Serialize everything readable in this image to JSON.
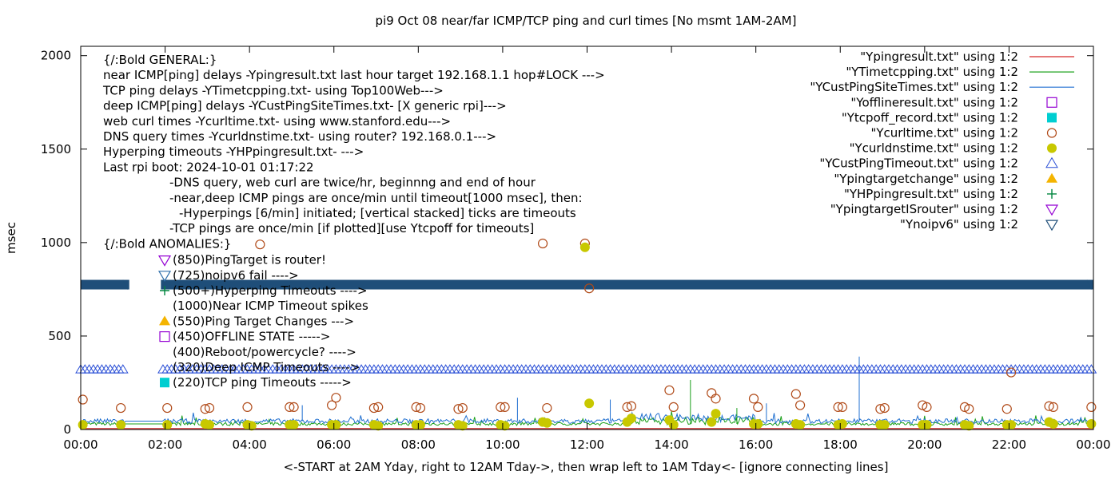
{
  "chart_data": {
    "type": "scatter",
    "title": "pi9 Oct 08  near/far ICMP/TCP ping and curl times [No msmt 1AM-2AM]",
    "xlabel": "<-START at 2AM Yday, right to 12AM Tday->, then wrap left to 1AM Tday<- [ignore connecting lines]",
    "ylabel": "msec",
    "xlim": [
      0,
      24
    ],
    "ylim": [
      0,
      2050
    ],
    "grid": false,
    "legend_position": "top-right",
    "x_ticks": [
      {
        "v": 0,
        "label": "00:00"
      },
      {
        "v": 2,
        "label": "02:00"
      },
      {
        "v": 4,
        "label": "04:00"
      },
      {
        "v": 6,
        "label": "06:00"
      },
      {
        "v": 8,
        "label": "08:00"
      },
      {
        "v": 10,
        "label": "10:00"
      },
      {
        "v": 12,
        "label": "12:00"
      },
      {
        "v": 14,
        "label": "14:00"
      },
      {
        "v": 16,
        "label": "16:00"
      },
      {
        "v": 18,
        "label": "18:00"
      },
      {
        "v": 20,
        "label": "20:00"
      },
      {
        "v": 22,
        "label": "22:00"
      },
      {
        "v": 24,
        "label": "00:00"
      }
    ],
    "y_ticks": [
      {
        "v": 0,
        "label": "0"
      },
      {
        "v": 500,
        "label": "500"
      },
      {
        "v": 1000,
        "label": "1000"
      },
      {
        "v": 1500,
        "label": "1500"
      },
      {
        "v": 2000,
        "label": "2000"
      }
    ],
    "annotations": [
      "{/:Bold GENERAL:}",
      "near ICMP[ping] delays -Ypingresult.txt last hour target 192.168.1.1 hop#LOCK --->",
      "TCP ping delays -YTimetcpping.txt- using Top100Web--->",
      "deep ICMP[ping] delays -YCustPingSiteTimes.txt- [X generic rpi]--->",
      "web curl times -Ycurltime.txt- using www.stanford.edu--->",
      "DNS query times -Ycurldnstime.txt- using router? 192.168.0.1--->",
      "Hyperping timeouts -YHPpingresult.txt- --->",
      "Last rpi boot: 2024-10-01 01:17:22"
    ],
    "notes": [
      "-DNS query, web curl are twice/hr, beginnng and end of hour",
      "-near,deep ICMP pings are once/min until timeout[1000 msec], then:",
      "-Hyperpings [6/min] initiated; [vertical stacked] ticks are timeouts",
      "-TCP pings are once/min [if plotted][use Ytcpoff for timeouts]"
    ],
    "anomalies_title": "{/:Bold ANOMALIES:}",
    "anomalies": [
      {
        "text": "(850)PingTarget is router!",
        "marker": "tri-down-open",
        "color": "#9400d3"
      },
      {
        "text": "(725)noipv6 fail   ---->",
        "marker": "tri-down-open",
        "color": "#2e6eaa"
      },
      {
        "text": "(500+)Hyperping Timeouts ---->",
        "marker": "plus",
        "color": "#00853f"
      },
      {
        "text": "(1000)Near ICMP Timeout spikes",
        "marker": "none",
        "color": "#000000"
      },
      {
        "text": "(550)Ping Target Changes --->",
        "marker": "tri-up-filled",
        "color": "#f4b400"
      },
      {
        "text": "(450)OFFLINE STATE ----->",
        "marker": "square-open",
        "color": "#9400d3"
      },
      {
        "text": "(400)Reboot/powercycle? ---->",
        "marker": "none",
        "color": "#000000"
      },
      {
        "text": "(320)Deep ICMP Timeouts ---->",
        "marker": "none",
        "color": "#000000"
      },
      {
        "text": "(220)TCP ping Timeouts ----->",
        "marker": "square-filled",
        "color": "#00ced1"
      }
    ],
    "series": [
      {
        "name": "\"Ypingresult.txt\" using 1:2",
        "kind": "line",
        "color": "#d62728",
        "y_const": 5
      },
      {
        "name": "\"YTimetcpping.txt\" using 1:2",
        "kind": "line",
        "color": "#1aa01a",
        "base": 30,
        "x_start": 0,
        "x_end": 24
      },
      {
        "name": "\"YCustPingSiteTimes.txt\" using 1:2",
        "kind": "line",
        "color": "#1f6fd0",
        "base": 45,
        "x_start": 0,
        "x_end": 24
      },
      {
        "name": "\"Yofflineresult.txt\" using 1:2",
        "kind": "square-open",
        "color": "#9400d3",
        "points": []
      },
      {
        "name": "\"Ytcpoff_record.txt\" using 1:2",
        "kind": "square-filled",
        "color": "#00ced1",
        "points": []
      },
      {
        "name": "\"Ycurltime.txt\" using 1:2",
        "kind": "circle-open",
        "color": "#b04a18",
        "points": [
          [
            0.05,
            160
          ],
          [
            0.95,
            115
          ],
          [
            2.05,
            115
          ],
          [
            2.95,
            110
          ],
          [
            3.05,
            115
          ],
          [
            3.95,
            120
          ],
          [
            4.25,
            990
          ],
          [
            4.95,
            120
          ],
          [
            5.05,
            120
          ],
          [
            5.95,
            130
          ],
          [
            6.05,
            170
          ],
          [
            6.95,
            115
          ],
          [
            7.05,
            120
          ],
          [
            7.95,
            120
          ],
          [
            8.05,
            115
          ],
          [
            8.95,
            110
          ],
          [
            9.05,
            115
          ],
          [
            9.95,
            120
          ],
          [
            10.05,
            120
          ],
          [
            10.95,
            995
          ],
          [
            11.05,
            115
          ],
          [
            11.95,
            995
          ],
          [
            12.05,
            755
          ],
          [
            12.95,
            120
          ],
          [
            13.05,
            125
          ],
          [
            13.95,
            210
          ],
          [
            14.05,
            120
          ],
          [
            14.95,
            195
          ],
          [
            15.05,
            165
          ],
          [
            15.95,
            165
          ],
          [
            16.05,
            120
          ],
          [
            16.95,
            190
          ],
          [
            17.05,
            130
          ],
          [
            17.95,
            120
          ],
          [
            18.05,
            120
          ],
          [
            18.95,
            110
          ],
          [
            19.05,
            115
          ],
          [
            19.95,
            130
          ],
          [
            20.05,
            120
          ],
          [
            20.95,
            120
          ],
          [
            21.05,
            110
          ],
          [
            21.95,
            110
          ],
          [
            22.05,
            305
          ],
          [
            22.95,
            125
          ],
          [
            23.05,
            120
          ],
          [
            23.95,
            120
          ]
        ]
      },
      {
        "name": "\"Ycurldnstime.txt\" using 1:2",
        "kind": "circle-filled",
        "color": "#c8c800",
        "points": [
          [
            0.05,
            25
          ],
          [
            0.95,
            25
          ],
          [
            2.05,
            25
          ],
          [
            2.95,
            30
          ],
          [
            3.05,
            25
          ],
          [
            3.95,
            25
          ],
          [
            4.05,
            20
          ],
          [
            4.95,
            25
          ],
          [
            5.05,
            25
          ],
          [
            5.95,
            25
          ],
          [
            6.05,
            25
          ],
          [
            6.95,
            25
          ],
          [
            7.05,
            20
          ],
          [
            7.95,
            25
          ],
          [
            8.05,
            25
          ],
          [
            8.95,
            25
          ],
          [
            9.05,
            20
          ],
          [
            9.95,
            25
          ],
          [
            10.05,
            20
          ],
          [
            10.95,
            40
          ],
          [
            11.05,
            35
          ],
          [
            11.95,
            975
          ],
          [
            12.05,
            140
          ],
          [
            12.95,
            40
          ],
          [
            13.05,
            60
          ],
          [
            13.95,
            50
          ],
          [
            14.05,
            25
          ],
          [
            14.95,
            40
          ],
          [
            15.05,
            85
          ],
          [
            15.95,
            30
          ],
          [
            16.05,
            30
          ],
          [
            16.95,
            30
          ],
          [
            17.05,
            25
          ],
          [
            17.95,
            25
          ],
          [
            18.05,
            30
          ],
          [
            18.95,
            25
          ],
          [
            19.05,
            25
          ],
          [
            19.95,
            25
          ],
          [
            20.05,
            25
          ],
          [
            20.95,
            25
          ],
          [
            21.05,
            20
          ],
          [
            21.95,
            25
          ],
          [
            22.05,
            25
          ],
          [
            22.95,
            40
          ],
          [
            23.05,
            30
          ],
          [
            23.95,
            30
          ]
        ]
      },
      {
        "name": "\"YCustPingTimeout.txt\" using 1:2",
        "kind": "tri-up-open-band",
        "color": "#2a4fd6",
        "y": 320,
        "segments": [
          [
            0.0,
            1.05
          ],
          [
            1.95,
            24.0
          ]
        ]
      },
      {
        "name": "\"Ypingtargetchange\" using 1:2",
        "kind": "tri-up-filled",
        "color": "#f4b400",
        "points": []
      },
      {
        "name": "\"YHPpingresult.txt\" using 1:2",
        "kind": "plus",
        "color": "#00853f",
        "points": []
      },
      {
        "name": "\"YpingtargetISrouter\" using 1:2",
        "kind": "tri-down-open",
        "color": "#9400d3",
        "points": []
      },
      {
        "name": "\"Ynoipv6\" using 1:2",
        "kind": "tri-down-band",
        "color": "#1f4e79",
        "y": 775,
        "segments": [
          [
            0.0,
            1.15
          ],
          [
            1.9,
            24.0
          ]
        ]
      }
    ],
    "spikes": [
      {
        "series": 1,
        "x": 14.45,
        "y": 265
      },
      {
        "series": 2,
        "x": 18.45,
        "y": 390
      },
      {
        "series": 2,
        "x": 10.35,
        "y": 170
      },
      {
        "series": 2,
        "x": 5.25,
        "y": 130
      },
      {
        "series": 2,
        "x": 12.55,
        "y": 160
      },
      {
        "series": 2,
        "x": 16.25,
        "y": 140
      },
      {
        "series": 1,
        "x": 15.55,
        "y": 115
      }
    ]
  }
}
